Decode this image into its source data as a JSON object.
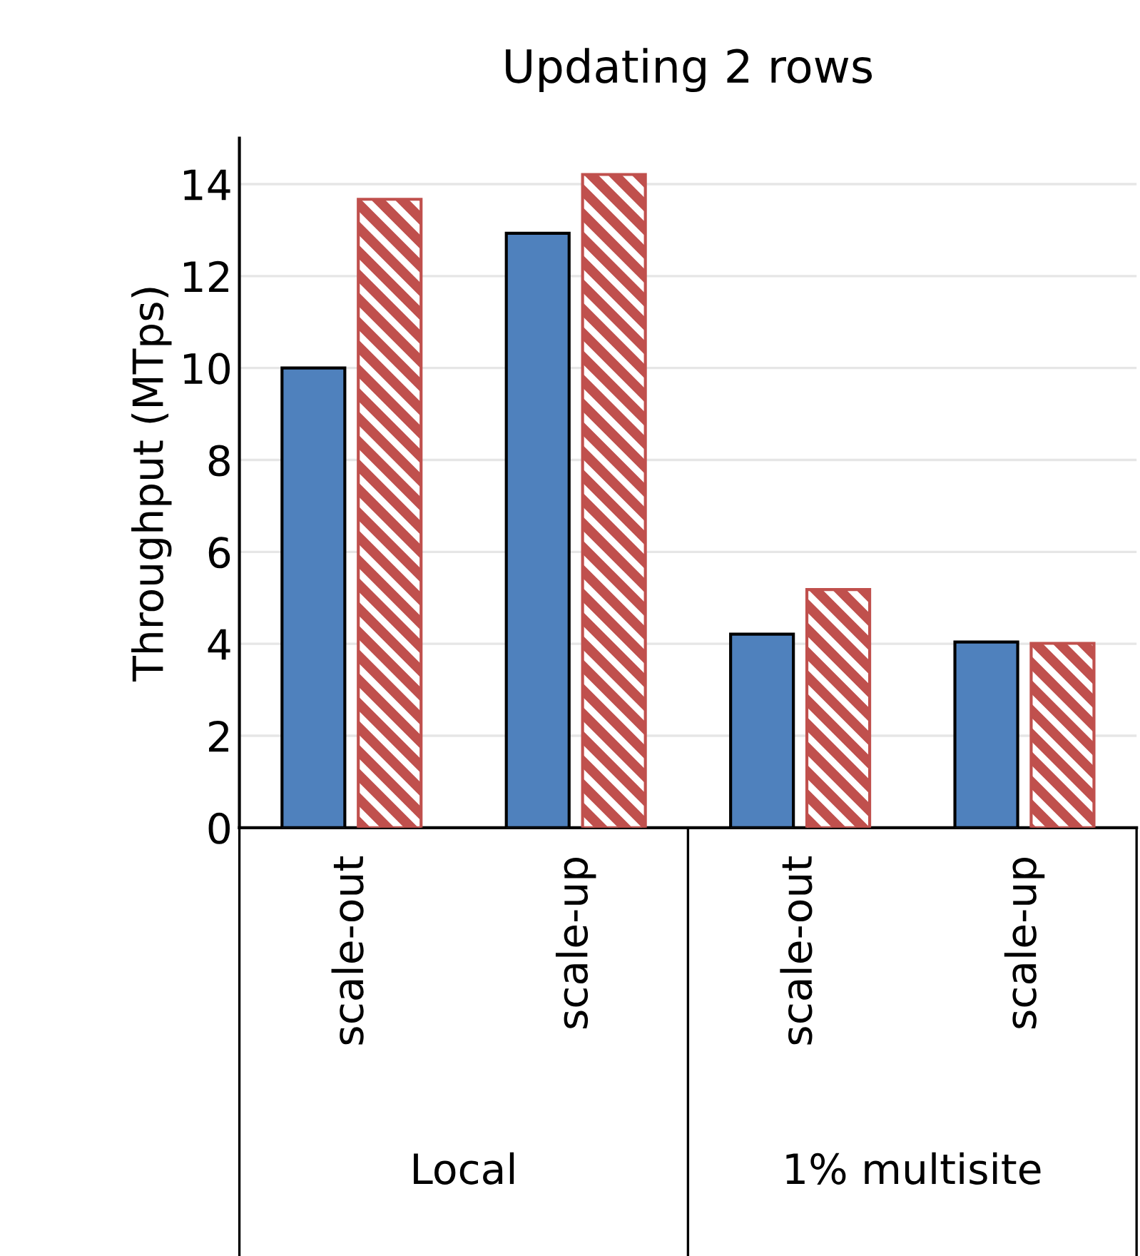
{
  "chart_data": {
    "type": "bar",
    "title": "Updating 2 rows",
    "ylabel": "Throughput (MTps)",
    "categories": [
      "scale-out",
      "scale-up",
      "scale-out",
      "scale-up"
    ],
    "annotations": [
      "Local",
      "1% multisite"
    ],
    "series": [
      {
        "color": "#4f81bd",
        "values": [
          10.0,
          12.93,
          4.21,
          4.04
        ]
      },
      {
        "color": "#c0504d",
        "values": [
          13.67,
          14.21,
          5.18,
          4.01
        ]
      }
    ],
    "ylim": [
      0,
      15
    ],
    "yticks": [
      0,
      2,
      4,
      6,
      8,
      10,
      12,
      14
    ],
    "grid": "y",
    "legend": false
  }
}
